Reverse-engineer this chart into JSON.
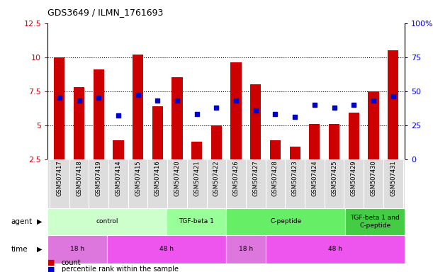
{
  "title": "GDS3649 / ILMN_1761693",
  "samples": [
    "GSM507417",
    "GSM507418",
    "GSM507419",
    "GSM507414",
    "GSM507415",
    "GSM507416",
    "GSM507420",
    "GSM507421",
    "GSM507422",
    "GSM507426",
    "GSM507427",
    "GSM507428",
    "GSM507423",
    "GSM507424",
    "GSM507425",
    "GSM507429",
    "GSM507430",
    "GSM507431"
  ],
  "counts": [
    10.0,
    7.8,
    9.1,
    3.9,
    10.2,
    6.4,
    8.5,
    3.8,
    5.0,
    9.6,
    8.0,
    3.9,
    3.4,
    5.1,
    5.1,
    5.9,
    7.5,
    10.5
  ],
  "percentiles": [
    45,
    43,
    45,
    32,
    47,
    43,
    43,
    33,
    38,
    43,
    36,
    33,
    31,
    40,
    38,
    40,
    43,
    46
  ],
  "ylim_left": [
    2.5,
    12.5
  ],
  "ylim_right": [
    0,
    100
  ],
  "yticks_left": [
    2.5,
    5.0,
    7.5,
    10.0,
    12.5
  ],
  "yticks_right": [
    0,
    25,
    50,
    75,
    100
  ],
  "bar_color": "#cc0000",
  "dot_color": "#0000cc",
  "agent_groups": [
    {
      "label": "control",
      "start": 0,
      "end": 6,
      "color": "#ccffcc"
    },
    {
      "label": "TGF-beta 1",
      "start": 6,
      "end": 9,
      "color": "#99ff99"
    },
    {
      "label": "C-peptide",
      "start": 9,
      "end": 15,
      "color": "#66ee66"
    },
    {
      "label": "TGF-beta 1 and\nC-peptide",
      "start": 15,
      "end": 18,
      "color": "#44cc44"
    }
  ],
  "time_groups": [
    {
      "label": "18 h",
      "start": 0,
      "end": 3,
      "color": "#dd77dd"
    },
    {
      "label": "48 h",
      "start": 3,
      "end": 9,
      "color": "#ee55ee"
    },
    {
      "label": "18 h",
      "start": 9,
      "end": 11,
      "color": "#dd77dd"
    },
    {
      "label": "48 h",
      "start": 11,
      "end": 18,
      "color": "#ee55ee"
    }
  ],
  "legend_count_color": "#cc0000",
  "legend_dot_color": "#0000cc",
  "tick_label_color_left": "#cc0000",
  "tick_label_color_right": "#0000cc",
  "grid_yticks": [
    5.0,
    7.5,
    10.0
  ]
}
